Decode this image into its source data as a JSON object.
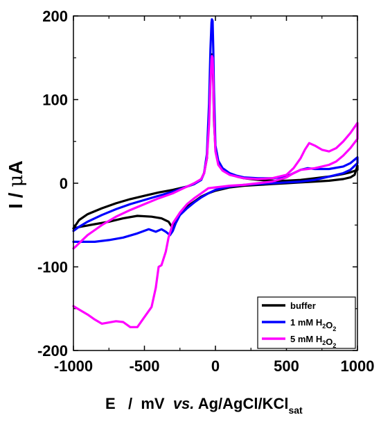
{
  "chart_data": {
    "type": "line",
    "xlim": [
      -1000,
      1000
    ],
    "ylim": [
      -200,
      200
    ],
    "x_ticks": [
      -1000,
      -500,
      0,
      500,
      1000
    ],
    "y_ticks": [
      -200,
      -100,
      0,
      100,
      200
    ],
    "x_tick_labels": [
      "-1000",
      "-500",
      "0",
      "500",
      "1000"
    ],
    "y_tick_labels": [
      "-200",
      "-100",
      "0",
      "100",
      "200"
    ],
    "xlabel": {
      "prefix": "E   /  mV  ",
      "italic": "vs.",
      "main": " Ag/AgCl/KCl",
      "sub": "sat"
    },
    "ylabel": {
      "main": "I  /  ",
      "greek": "μ",
      "unit": "A"
    },
    "grid": false,
    "legend_position": "bottom-right",
    "series": [
      {
        "name": {
          "main": "buffer",
          "parts": [
            {
              "text": "buffer",
              "sub": ""
            }
          ]
        },
        "color": "#000000",
        "x": [
          -1000,
          -960,
          -900,
          -800,
          -700,
          -600,
          -500,
          -400,
          -300,
          -250,
          -200,
          -150,
          -100,
          -80,
          -60,
          -45,
          -35,
          -28,
          -25,
          -20,
          -15,
          -10,
          0,
          20,
          50,
          100,
          150,
          200,
          300,
          400,
          500,
          600,
          700,
          800,
          900,
          950,
          1000,
          1000,
          980,
          950,
          900,
          800,
          700,
          600,
          500,
          400,
          300,
          200,
          100,
          50,
          0,
          -50,
          -100,
          -150,
          -200,
          -250,
          -280,
          -300,
          -330,
          -380,
          -450,
          -550,
          -650,
          -750,
          -850,
          -950,
          -1000
        ],
        "y": [
          -54,
          -44,
          -37,
          -30,
          -24,
          -19,
          -15,
          -11,
          -8,
          -6,
          -4,
          -1,
          5,
          12,
          30,
          80,
          130,
          152,
          154,
          150,
          120,
          75,
          42,
          25,
          17,
          11,
          8,
          6,
          4,
          3,
          3,
          4,
          6,
          8,
          11,
          13,
          16,
          21,
          10,
          7,
          5,
          3,
          2,
          1,
          0,
          -1,
          -2,
          -3,
          -5,
          -7,
          -9,
          -12,
          -16,
          -22,
          -28,
          -36,
          -46,
          -54,
          -46,
          -42,
          -40,
          -39,
          -42,
          -46,
          -49,
          -52,
          -54
        ]
      },
      {
        "name": {
          "main": "1 mM H2O2",
          "parts": [
            {
              "text": "1 mM H",
              "sub": "2"
            },
            {
              "text": "O",
              "sub": "2"
            }
          ]
        },
        "color": "#0000ff",
        "x": [
          -1000,
          -960,
          -900,
          -800,
          -700,
          -600,
          -500,
          -400,
          -300,
          -250,
          -200,
          -150,
          -100,
          -80,
          -60,
          -45,
          -35,
          -28,
          -25,
          -20,
          -15,
          -10,
          0,
          20,
          50,
          100,
          150,
          200,
          300,
          400,
          500,
          550,
          600,
          650,
          700,
          800,
          900,
          950,
          1000,
          1000,
          950,
          900,
          800,
          700,
          600,
          500,
          400,
          300,
          200,
          100,
          50,
          0,
          -50,
          -100,
          -150,
          -200,
          -250,
          -280,
          -300,
          -320,
          -350,
          -380,
          -420,
          -470,
          -550,
          -650,
          -750,
          -850,
          -950,
          -1000
        ],
        "y": [
          -57,
          -52,
          -46,
          -38,
          -31,
          -25,
          -20,
          -15,
          -10,
          -7,
          -4,
          -1,
          4,
          12,
          35,
          95,
          160,
          192,
          196,
          194,
          160,
          110,
          45,
          27,
          18,
          12,
          9,
          7,
          6,
          6,
          8,
          12,
          16,
          18,
          17,
          17,
          20,
          24,
          31,
          24,
          16,
          12,
          8,
          4,
          2,
          1,
          0,
          -1,
          -2,
          -4,
          -6,
          -8,
          -12,
          -17,
          -23,
          -30,
          -38,
          -48,
          -57,
          -62,
          -58,
          -55,
          -58,
          -55,
          -60,
          -65,
          -68,
          -70,
          -70,
          -70
        ]
      },
      {
        "name": {
          "main": "5 mM H2O2",
          "parts": [
            {
              "text": "5 mM H",
              "sub": "2"
            },
            {
              "text": "O",
              "sub": "2"
            }
          ]
        },
        "color": "#ff00ff",
        "x": [
          -1000,
          -980,
          -950,
          -900,
          -850,
          -800,
          -700,
          -600,
          -500,
          -400,
          -300,
          -250,
          -200,
          -150,
          -100,
          -80,
          -60,
          -45,
          -35,
          -28,
          -25,
          -20,
          -15,
          -10,
          0,
          20,
          50,
          100,
          150,
          200,
          300,
          400,
          500,
          550,
          600,
          630,
          660,
          700,
          750,
          800,
          850,
          900,
          950,
          1000,
          1000,
          950,
          900,
          850,
          800,
          700,
          650,
          600,
          550,
          500,
          400,
          300,
          200,
          100,
          50,
          0,
          -50,
          -100,
          -150,
          -200,
          -250,
          -300,
          -330,
          -350,
          -380,
          -400,
          -420,
          -450,
          -500,
          -550,
          -600,
          -650,
          -700,
          -800,
          -850,
          -900,
          -950,
          -1000
        ],
        "y": [
          -78,
          -75,
          -70,
          -62,
          -56,
          -50,
          -40,
          -32,
          -25,
          -18,
          -12,
          -8,
          -4,
          0,
          5,
          12,
          30,
          70,
          120,
          148,
          152,
          150,
          125,
          80,
          38,
          22,
          15,
          10,
          8,
          6,
          5,
          6,
          10,
          18,
          30,
          40,
          48,
          45,
          40,
          38,
          42,
          50,
          60,
          72,
          53,
          42,
          33,
          26,
          22,
          18,
          17,
          16,
          12,
          7,
          2,
          0,
          -2,
          -3,
          -4,
          -5,
          -6,
          -12,
          -18,
          -25,
          -35,
          -48,
          -65,
          -82,
          -98,
          -100,
          -125,
          -148,
          -160,
          -172,
          -172,
          -166,
          -165,
          -168,
          -163,
          -157,
          -152,
          -147
        ]
      }
    ]
  }
}
